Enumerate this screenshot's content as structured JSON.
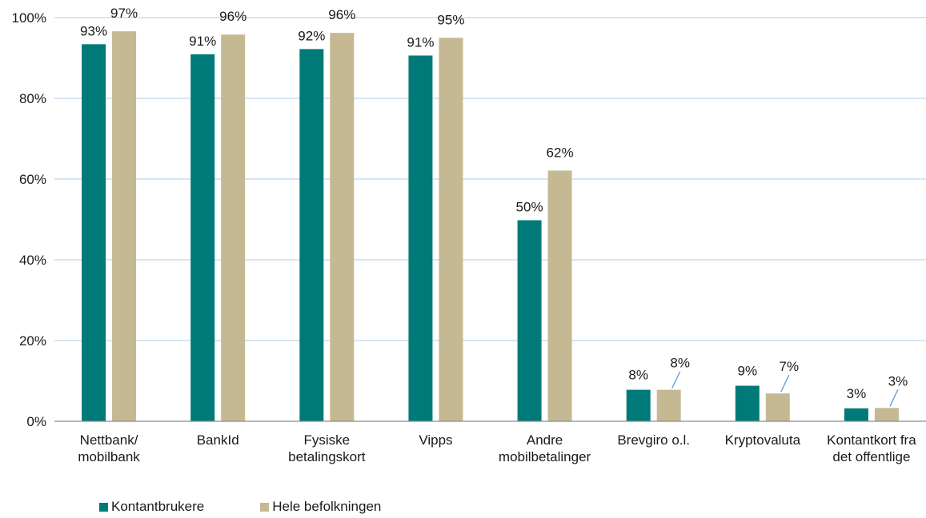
{
  "chart_data": {
    "type": "bar",
    "categories": [
      [
        "Nettbank/",
        "mobilbank"
      ],
      [
        "BankId"
      ],
      [
        "Fysiske",
        "betalingskort"
      ],
      [
        "Vipps"
      ],
      [
        "Andre",
        "mobilbetalinger"
      ],
      [
        "Brevgiro o.l."
      ],
      [
        "Kryptovaluta"
      ],
      [
        "Kontantkort fra",
        "det offentlige"
      ]
    ],
    "series": [
      {
        "name": "Kontantbrukere",
        "color": "#007a78",
        "values": [
          93.4,
          90.9,
          92.2,
          90.6,
          49.8,
          7.8,
          8.8,
          3.2
        ],
        "labels": [
          "93%",
          "91%",
          "92%",
          "91%",
          "50%",
          "8%",
          "9%",
          "3%"
        ]
      },
      {
        "name": "Hele befolkningen",
        "color": "#c5b994",
        "values": [
          96.6,
          95.8,
          96.2,
          95.0,
          62.1,
          7.8,
          6.9,
          3.3
        ],
        "labels": [
          "97%",
          "96%",
          "96%",
          "95%",
          "62%",
          "8%",
          "7%",
          "3%"
        ]
      }
    ],
    "yticks": [
      "0%",
      "20%",
      "40%",
      "60%",
      "80%",
      "100%"
    ],
    "ylim": [
      0,
      100
    ],
    "grid": true,
    "gridColor": "#bcd8ee",
    "leaderColor": "#5b9bd5",
    "legend_position": "bottom-left",
    "title": "",
    "xlabel": "",
    "ylabel": ""
  }
}
